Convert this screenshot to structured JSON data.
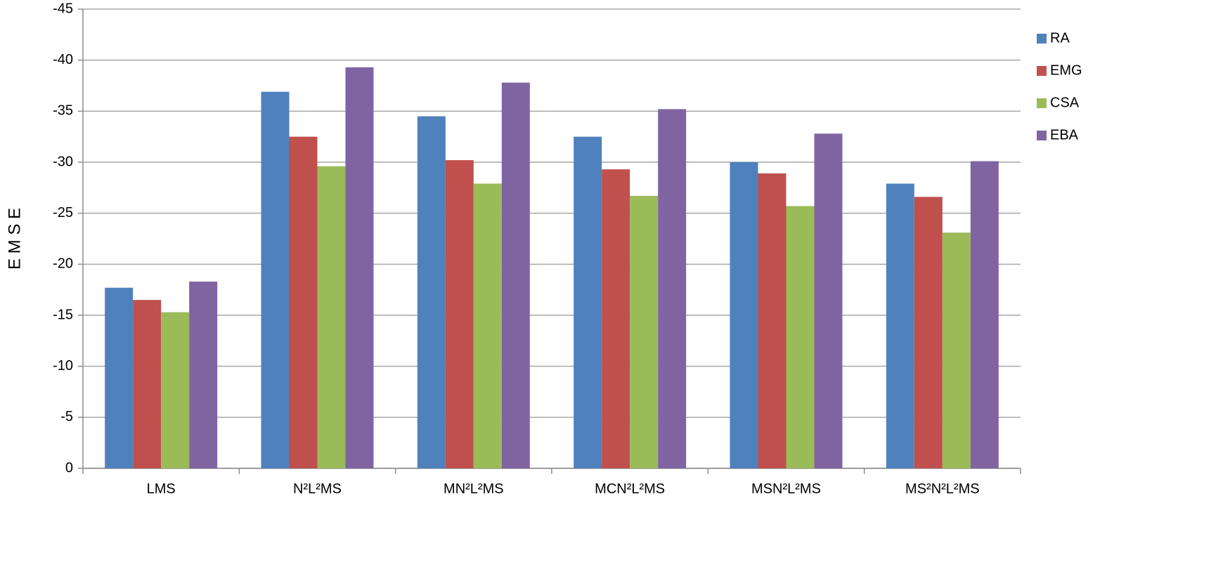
{
  "chart_data": {
    "type": "bar",
    "y_label": "E M S E",
    "categories": [
      "LMS",
      "N²L²MS",
      "MN²L²MS",
      "MCN²L²MS",
      "MSN²L²MS",
      "MS²N²L²MS"
    ],
    "series": [
      {
        "name": "RA",
        "color": "#4f81bd",
        "values": [
          -17.7,
          -36.9,
          -34.5,
          -32.5,
          -30.0,
          -27.9
        ]
      },
      {
        "name": "EMG",
        "color": "#c0504d",
        "values": [
          -16.5,
          -32.5,
          -30.2,
          -29.3,
          -28.9,
          -26.6
        ]
      },
      {
        "name": "CSA",
        "color": "#9bbb59",
        "values": [
          -15.3,
          -29.6,
          -27.9,
          -26.7,
          -25.7,
          -23.1
        ]
      },
      {
        "name": "EBA",
        "color": "#8064a2",
        "values": [
          -18.3,
          -39.3,
          -37.8,
          -35.2,
          -32.8,
          -30.1
        ]
      }
    ],
    "ylim": [
      0,
      -45
    ],
    "yticks": [
      0,
      -5,
      -10,
      -15,
      -20,
      -25,
      -30,
      -35,
      -40,
      -45
    ],
    "grid": true,
    "legend": "right"
  }
}
